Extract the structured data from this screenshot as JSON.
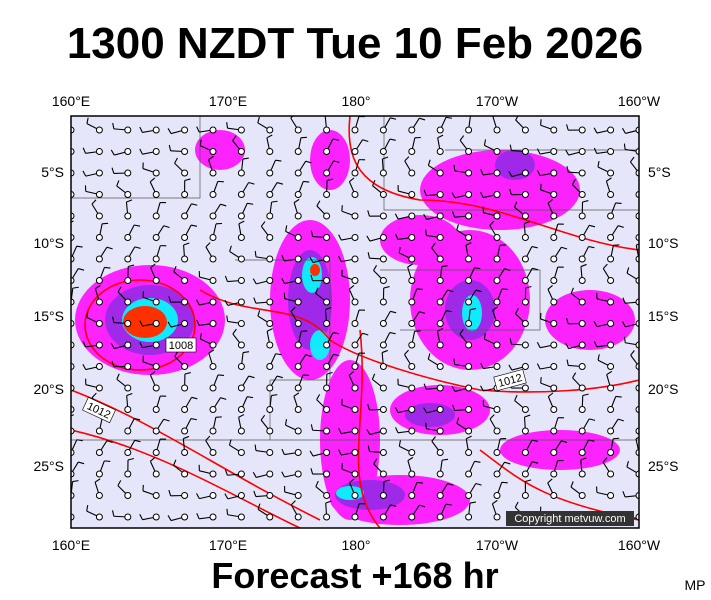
{
  "title": "1300 NZDT Tue 10 Feb 2026",
  "top_axis": [
    "160°E",
    "170°E",
    "180°",
    "170°W",
    "160°W"
  ],
  "bottom_axis": [
    "160°E",
    "170°E",
    "180°",
    "170°W",
    "160°W"
  ],
  "left_axis": [
    "5°S",
    "10°S",
    "15°S",
    "20°S",
    "25°S"
  ],
  "right_axis": [
    "5°S",
    "10°S",
    "15°S",
    "20°S",
    "25°S"
  ],
  "isobar_labels": [
    "1008",
    "1012",
    "1012"
  ],
  "copyright": "Copyright metvuw.com",
  "footer": "Forecast +168 hr",
  "corner": "MP"
}
